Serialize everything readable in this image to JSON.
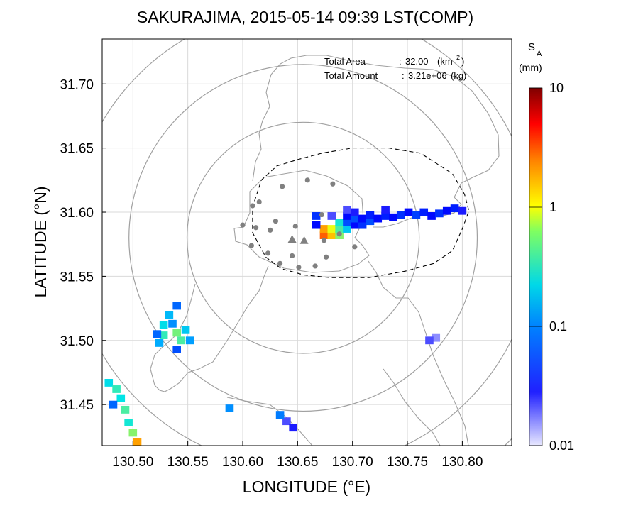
{
  "chart_data": {
    "type": "heatmap",
    "title": "SAKURAJIMA, 2015-05-14 09:39 LST(COMP)",
    "xlabel": "LONGITUDE (°E)",
    "ylabel": "LATITUDE (°N)",
    "xlim": [
      130.472,
      130.845
    ],
    "ylim": [
      31.418,
      31.735
    ],
    "xticks": [
      130.5,
      130.55,
      130.6,
      130.65,
      130.7,
      130.75,
      130.8
    ],
    "xtick_labels": [
      "130.50",
      "130.55",
      "130.60",
      "130.65",
      "130.70",
      "130.75",
      "130.80"
    ],
    "yticks": [
      31.45,
      31.5,
      31.55,
      31.6,
      31.65,
      31.7
    ],
    "ytick_labels": [
      "31.45",
      "31.50",
      "31.55",
      "31.60",
      "31.65",
      "31.70"
    ],
    "grid": true,
    "stats": {
      "area_label": "Total Area",
      "area_value": "32.00",
      "area_unit": "(km",
      "area_unit_exp": "2",
      "area_unit_close": ")",
      "amount_label": "Total Amount",
      "amount_value": "3.21e+06",
      "amount_unit": "(kg)"
    },
    "colorbar": {
      "symbol": "S",
      "subscript": "A",
      "unit": "(mm)",
      "scale": "log",
      "range": [
        0.01,
        10
      ],
      "ticks": [
        "10",
        "1",
        "0.1",
        "0.01"
      ],
      "colors": [
        "#e8e8ff",
        "#0000ff",
        "#00aaff",
        "#00e5e5",
        "#ffff00",
        "#ff8000",
        "#ff0000",
        "#800000"
      ]
    },
    "range_rings_center": [
      130.655,
      31.58
    ],
    "range_rings_radius_km": [
      10,
      15,
      20,
      25
    ],
    "station_markers": [
      [
        130.659,
        31.625
      ],
      [
        130.682,
        31.622
      ],
      [
        130.636,
        31.62
      ],
      [
        130.615,
        31.608
      ],
      [
        130.609,
        31.605
      ],
      [
        130.672,
        31.598
      ],
      [
        130.6,
        31.59
      ],
      [
        130.63,
        31.593
      ],
      [
        130.612,
        31.588
      ],
      [
        130.648,
        31.589
      ],
      [
        130.688,
        31.583
      ],
      [
        130.625,
        31.586
      ],
      [
        130.608,
        31.574
      ],
      [
        130.674,
        31.578
      ],
      [
        130.702,
        31.573
      ],
      [
        130.623,
        31.568
      ],
      [
        130.645,
        31.566
      ],
      [
        130.676,
        31.565
      ],
      [
        130.634,
        31.56
      ],
      [
        130.651,
        31.557
      ],
      [
        130.666,
        31.558
      ]
    ],
    "vent_markers": [
      [
        130.645,
        31.579
      ],
      [
        130.656,
        31.578
      ]
    ],
    "plume_outline": [
      [
        130.631,
        31.636
      ],
      [
        130.65,
        31.641
      ],
      [
        130.672,
        31.646
      ],
      [
        130.7,
        31.65
      ],
      [
        130.733,
        31.65
      ],
      [
        130.762,
        31.646
      ],
      [
        130.791,
        31.63
      ],
      [
        130.802,
        31.614
      ],
      [
        130.806,
        31.601
      ],
      [
        130.8,
        31.587
      ],
      [
        130.791,
        31.57
      ],
      [
        130.774,
        31.56
      ],
      [
        130.748,
        31.554
      ],
      [
        130.715,
        31.549
      ],
      [
        130.68,
        31.549
      ],
      [
        130.656,
        31.551
      ],
      [
        130.635,
        31.556
      ],
      [
        130.621,
        31.565
      ],
      [
        130.609,
        31.584
      ],
      [
        130.609,
        31.604
      ],
      [
        130.617,
        31.625
      ],
      [
        130.631,
        31.636
      ]
    ],
    "deposit_cells": [
      {
        "lon": 130.674,
        "lat": 31.582,
        "v": 3.0
      },
      {
        "lon": 130.674,
        "lat": 31.587,
        "v": 2.0
      },
      {
        "lon": 130.681,
        "lat": 31.582,
        "v": 1.6
      },
      {
        "lon": 130.681,
        "lat": 31.587,
        "v": 0.9
      },
      {
        "lon": 130.688,
        "lat": 31.582,
        "v": 0.5
      },
      {
        "lon": 130.688,
        "lat": 31.587,
        "v": 0.35
      },
      {
        "lon": 130.688,
        "lat": 31.592,
        "v": 0.25
      },
      {
        "lon": 130.695,
        "lat": 31.587,
        "v": 0.15
      },
      {
        "lon": 130.695,
        "lat": 31.592,
        "v": 0.05
      },
      {
        "lon": 130.695,
        "lat": 31.597,
        "v": 0.03
      },
      {
        "lon": 130.702,
        "lat": 31.59,
        "v": 0.03
      },
      {
        "lon": 130.702,
        "lat": 31.595,
        "v": 0.05
      },
      {
        "lon": 130.709,
        "lat": 31.59,
        "v": 0.04
      },
      {
        "lon": 130.709,
        "lat": 31.595,
        "v": 0.03
      },
      {
        "lon": 130.716,
        "lat": 31.593,
        "v": 0.05
      },
      {
        "lon": 130.716,
        "lat": 31.598,
        "v": 0.035
      },
      {
        "lon": 130.723,
        "lat": 31.595,
        "v": 0.03
      },
      {
        "lon": 130.73,
        "lat": 31.597,
        "v": 0.035
      },
      {
        "lon": 130.73,
        "lat": 31.602,
        "v": 0.025
      },
      {
        "lon": 130.737,
        "lat": 31.596,
        "v": 0.03
      },
      {
        "lon": 130.744,
        "lat": 31.598,
        "v": 0.04
      },
      {
        "lon": 130.751,
        "lat": 31.6,
        "v": 0.03
      },
      {
        "lon": 130.758,
        "lat": 31.598,
        "v": 0.045
      },
      {
        "lon": 130.765,
        "lat": 31.6,
        "v": 0.035
      },
      {
        "lon": 130.772,
        "lat": 31.597,
        "v": 0.03
      },
      {
        "lon": 130.779,
        "lat": 31.599,
        "v": 0.04
      },
      {
        "lon": 130.786,
        "lat": 31.601,
        "v": 0.03
      },
      {
        "lon": 130.793,
        "lat": 31.603,
        "v": 0.035
      },
      {
        "lon": 130.8,
        "lat": 31.601,
        "v": 0.025
      },
      {
        "lon": 130.695,
        "lat": 31.602,
        "v": 0.02
      },
      {
        "lon": 130.702,
        "lat": 31.6,
        "v": 0.025
      },
      {
        "lon": 130.681,
        "lat": 31.597,
        "v": 0.02
      },
      {
        "lon": 130.667,
        "lat": 31.597,
        "v": 0.04
      },
      {
        "lon": 130.667,
        "lat": 31.59,
        "v": 0.03
      },
      {
        "lon": 130.533,
        "lat": 31.52,
        "v": 0.12
      },
      {
        "lon": 130.528,
        "lat": 31.512,
        "v": 0.2
      },
      {
        "lon": 130.528,
        "lat": 31.504,
        "v": 0.3
      },
      {
        "lon": 130.524,
        "lat": 31.498,
        "v": 0.1
      },
      {
        "lon": 130.54,
        "lat": 31.506,
        "v": 0.45
      },
      {
        "lon": 130.536,
        "lat": 31.513,
        "v": 0.08
      },
      {
        "lon": 130.544,
        "lat": 31.5,
        "v": 0.35
      },
      {
        "lon": 130.548,
        "lat": 31.508,
        "v": 0.15
      },
      {
        "lon": 130.552,
        "lat": 31.5,
        "v": 0.09
      },
      {
        "lon": 130.54,
        "lat": 31.527,
        "v": 0.06
      },
      {
        "lon": 130.54,
        "lat": 31.493,
        "v": 0.05
      },
      {
        "lon": 130.522,
        "lat": 31.505,
        "v": 0.06
      },
      {
        "lon": 130.478,
        "lat": 31.467,
        "v": 0.2
      },
      {
        "lon": 130.485,
        "lat": 31.462,
        "v": 0.3
      },
      {
        "lon": 130.489,
        "lat": 31.455,
        "v": 0.22
      },
      {
        "lon": 130.493,
        "lat": 31.446,
        "v": 0.35
      },
      {
        "lon": 130.496,
        "lat": 31.436,
        "v": 0.25
      },
      {
        "lon": 130.5,
        "lat": 31.428,
        "v": 0.5
      },
      {
        "lon": 130.504,
        "lat": 31.421,
        "v": 2.0
      },
      {
        "lon": 130.482,
        "lat": 31.45,
        "v": 0.06
      },
      {
        "lon": 130.64,
        "lat": 31.437,
        "v": 0.02
      },
      {
        "lon": 130.646,
        "lat": 31.432,
        "v": 0.025
      },
      {
        "lon": 130.634,
        "lat": 31.442,
        "v": 0.07
      },
      {
        "lon": 130.588,
        "lat": 31.447,
        "v": 0.08
      },
      {
        "lon": 130.776,
        "lat": 31.502,
        "v": 0.015
      },
      {
        "lon": 130.77,
        "lat": 31.5,
        "v": 0.02
      }
    ]
  }
}
